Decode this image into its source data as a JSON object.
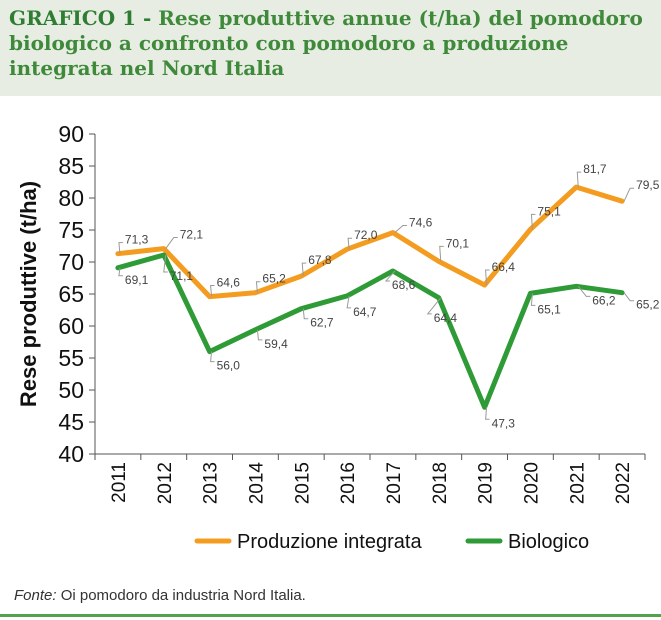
{
  "title": {
    "label": "GRAFICO 1 -",
    "text": "Rese produttive annue (t/ha) del pomodoro biologico a confronto con pomodoro a produzione integrata nel Nord Italia"
  },
  "source": {
    "prefix": "Fonte:",
    "text": "Oi pomodoro da industria Nord Italia."
  },
  "colors": {
    "integrata": "#f39c1f",
    "biologico": "#2e9b36",
    "title": "#3f8a3a",
    "band": "#e7ede3"
  },
  "chart_data": {
    "type": "line",
    "title": "",
    "xlabel": "",
    "ylabel": "Rese produttive (t/ha)",
    "ylim": [
      40,
      90
    ],
    "yticks": [
      40,
      45,
      50,
      55,
      60,
      65,
      70,
      75,
      80,
      85,
      90
    ],
    "grid": false,
    "legend": "bottom",
    "categories": [
      "2011",
      "2012",
      "2013",
      "2014",
      "2015",
      "2016",
      "2017",
      "2018",
      "2019",
      "2020",
      "2021",
      "2022"
    ],
    "series": [
      {
        "name": "Produzione integrata",
        "values": [
          71.3,
          72.1,
          64.6,
          65.2,
          67.8,
          72.0,
          74.6,
          70.1,
          66.4,
          75.1,
          81.7,
          79.5
        ],
        "labels": [
          "71,3",
          "72,1",
          "64,6",
          "65,2",
          "67,8",
          "72,0",
          "74,6",
          "70,1",
          "66,4",
          "75,1",
          "81,7",
          "79,5"
        ]
      },
      {
        "name": "Biologico",
        "values": [
          69.1,
          71.1,
          56.0,
          59.4,
          62.7,
          64.7,
          68.6,
          64.4,
          47.3,
          65.1,
          66.2,
          65.2
        ],
        "labels": [
          "69,1",
          "71,1",
          "56,0",
          "59,4",
          "62,7",
          "64,7",
          "68,6",
          "64,4",
          "47,3",
          "65,1",
          "66,2",
          "65,2"
        ]
      }
    ]
  }
}
